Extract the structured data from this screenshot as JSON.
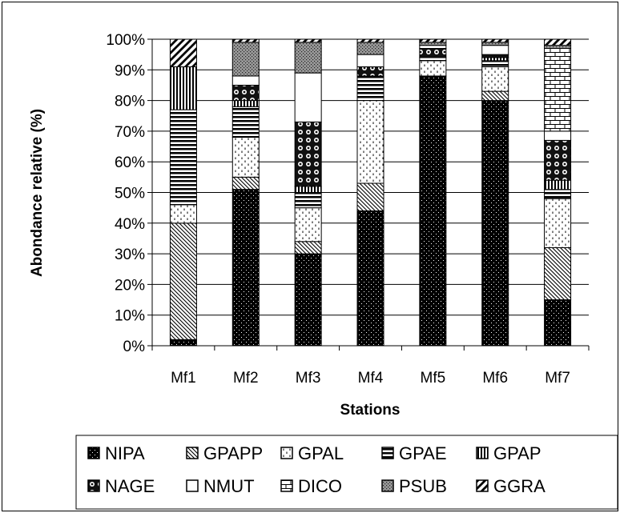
{
  "chart_data": {
    "type": "bar",
    "stacked": true,
    "percent": true,
    "xlabel": "Stations",
    "ylabel": "Abondance relative (%)",
    "ylim": [
      0,
      100
    ],
    "yticks": [
      "0%",
      "10%",
      "20%",
      "30%",
      "40%",
      "50%",
      "60%",
      "70%",
      "80%",
      "90%",
      "100%"
    ],
    "grid": true,
    "legend": "bottom",
    "categories": [
      "Mf1",
      "Mf2",
      "Mf3",
      "Mf4",
      "Mf5",
      "Mf6",
      "Mf7"
    ],
    "series": [
      {
        "name": "NIPA",
        "pattern": "dark-dots",
        "values": [
          2,
          51,
          30,
          44,
          88,
          80,
          15
        ]
      },
      {
        "name": "GPAPP",
        "pattern": "diagonal",
        "values": [
          38,
          4,
          4,
          9,
          0,
          3,
          17
        ]
      },
      {
        "name": "GPAL",
        "pattern": "dashes",
        "values": [
          6,
          13,
          11,
          27,
          5,
          8,
          16
        ]
      },
      {
        "name": "GPAE",
        "pattern": "horizontal",
        "values": [
          31,
          10,
          5,
          8,
          1,
          2,
          3
        ]
      },
      {
        "name": "GPAP",
        "pattern": "vertical",
        "values": [
          14,
          2,
          2,
          0,
          0,
          1,
          3
        ]
      },
      {
        "name": "NAGE",
        "pattern": "circles",
        "values": [
          0,
          5,
          21,
          3,
          3,
          1,
          13
        ]
      },
      {
        "name": "NMUT",
        "pattern": "white",
        "values": [
          0,
          3,
          16,
          4,
          1,
          3,
          3
        ]
      },
      {
        "name": "DICO",
        "pattern": "brick",
        "values": [
          0,
          0,
          0,
          0,
          0,
          0,
          27
        ]
      },
      {
        "name": "PSUB",
        "pattern": "grey-dots",
        "values": [
          0,
          11,
          10,
          4,
          1,
          1,
          1
        ]
      },
      {
        "name": "GGRA",
        "pattern": "wide-diagonal",
        "values": [
          9,
          1,
          1,
          1,
          1,
          1,
          2
        ]
      }
    ]
  }
}
